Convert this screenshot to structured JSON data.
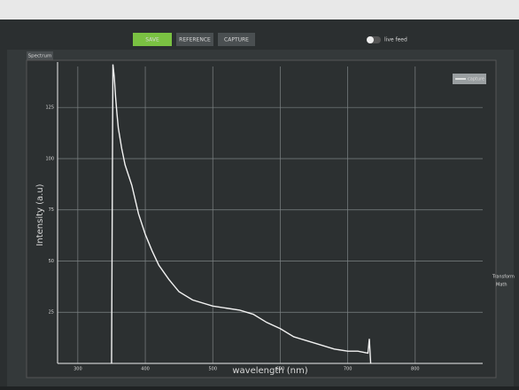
{
  "toolbar": {
    "buttons": [
      "SAVE",
      "REFERENCE",
      "CAPTURE"
    ],
    "toggle": "live feed"
  },
  "tab": "Spectrum",
  "side_panel": {
    "title": "Transform",
    "subtitle": "Math"
  },
  "chart_data": {
    "type": "line",
    "x_label": "wavelength (nm)",
    "y_label": "Intensity (a.u)",
    "x": [
      350,
      352,
      354,
      356,
      358,
      360,
      365,
      370,
      380,
      390,
      400,
      410,
      420,
      435,
      450,
      470,
      500,
      520,
      540,
      560,
      580,
      600,
      620,
      640,
      660,
      680,
      700,
      715,
      730,
      732,
      734
    ],
    "series": [
      {
        "name": "capture",
        "color": "#f2f2f2",
        "values": [
          0,
          146,
          140,
          130,
          122,
          115,
          105,
          97,
          87,
          73,
          63,
          55,
          48,
          41,
          35,
          31,
          28,
          27,
          26,
          24,
          20,
          17,
          13,
          11,
          9,
          7,
          6,
          6,
          5,
          12,
          0
        ]
      }
    ],
    "xlim": [
      270,
      900
    ],
    "ylim": [
      0,
      145
    ],
    "xticks": [
      300,
      400,
      500,
      600,
      700,
      800
    ],
    "yticks": [
      25,
      50,
      75,
      100,
      125
    ],
    "grid": true,
    "legend": "top-right"
  }
}
